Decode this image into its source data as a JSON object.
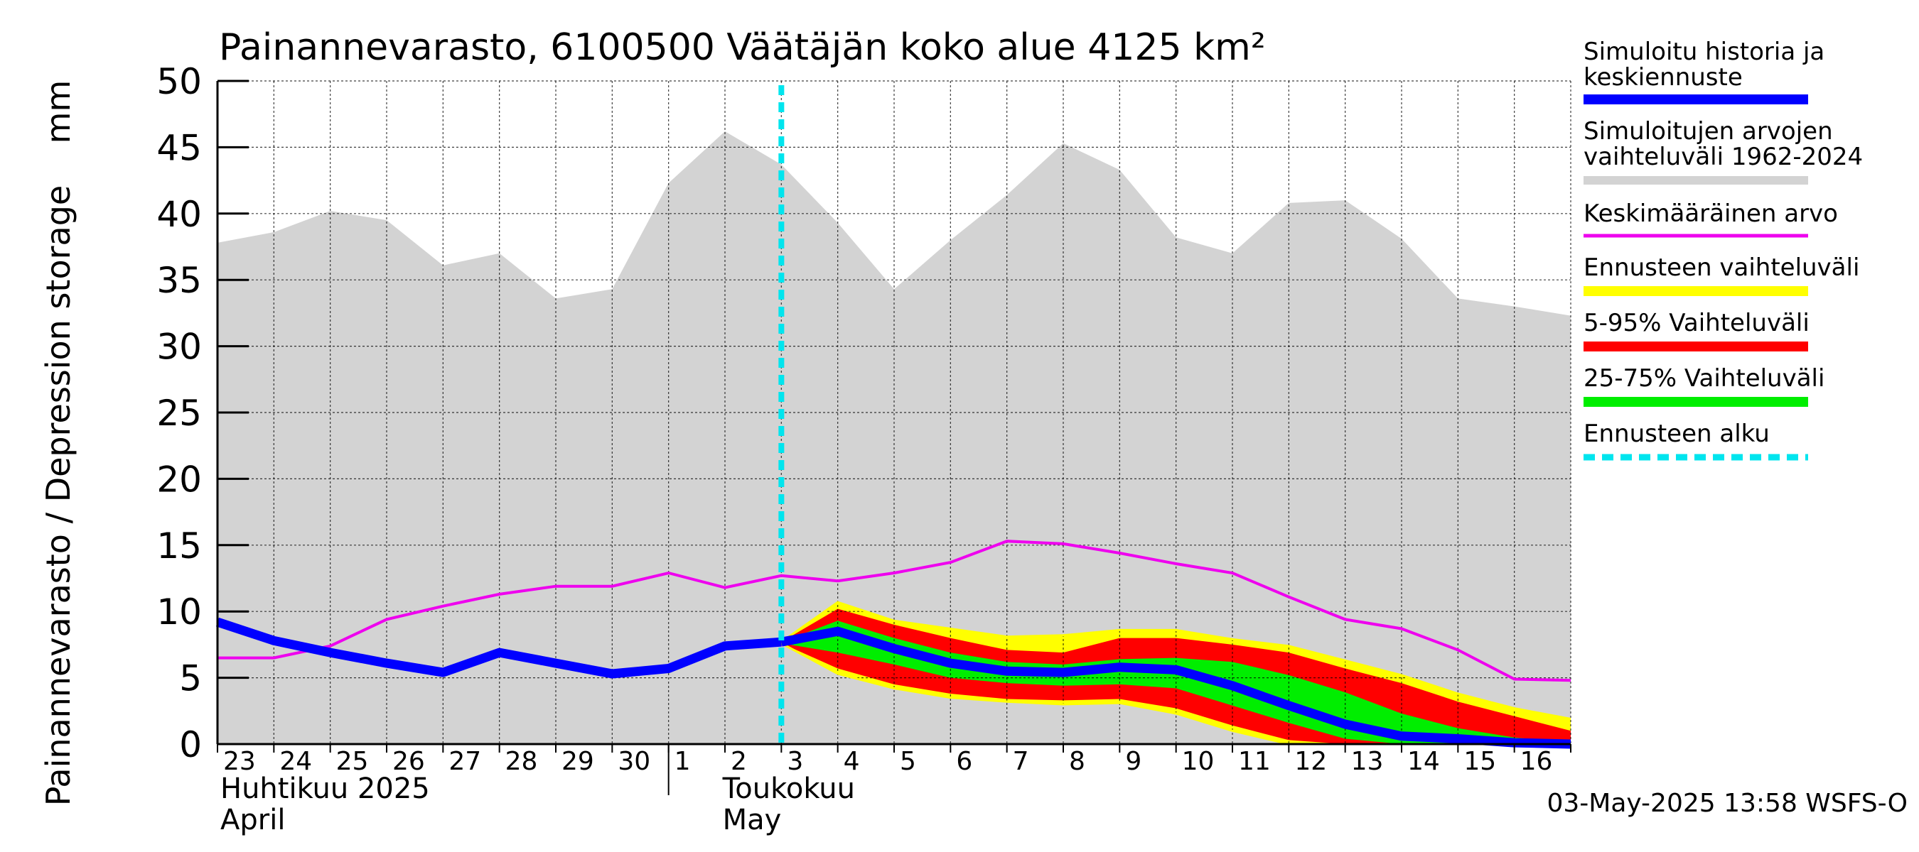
{
  "chart_data": {
    "type": "area",
    "title": "Painannevarasto, 6100500 Väätäjän koko alue 4125 km²",
    "ylabel": "Painannevarasto / Depression storage    mm",
    "ylim": [
      0,
      50
    ],
    "yticks": [
      0,
      5,
      10,
      15,
      20,
      25,
      30,
      35,
      40,
      45,
      50
    ],
    "x_start_date": "2025-04-23",
    "x_end_date": "2025-05-17",
    "day_labels": [
      "23",
      "24",
      "25",
      "26",
      "27",
      "28",
      "29",
      "30",
      "1",
      "2",
      "3",
      "4",
      "5",
      "6",
      "7",
      "8",
      "9",
      "10",
      "11",
      "12",
      "13",
      "14",
      "15",
      "16"
    ],
    "month_labels": [
      {
        "fi": "Huhtikuu  2025",
        "en": "April",
        "date": "2025-04-23"
      },
      {
        "fi": "Toukokuu",
        "en": "May",
        "date": "2025-05-01"
      }
    ],
    "forecast_start": "2025-05-03",
    "grid": true,
    "legend_position": "right",
    "legend": [
      {
        "label": "Simuloitu historia ja keskiennuste",
        "color": "#0000ff"
      },
      {
        "label": "Simuloitujen arvojen vaihteluväli 1962-2024",
        "color": "#d3d3d3"
      },
      {
        "label": "Keskimääräinen arvo",
        "color": "#ee00ee"
      },
      {
        "label": "Ennusteen vaihteluväli",
        "color": "#ffff00"
      },
      {
        "label": "5-95% Vaihteluväli",
        "color": "#ff0000"
      },
      {
        "label": "25-75% Vaihteluväli",
        "color": "#00ee00"
      },
      {
        "label": "Ennusteen alku",
        "color": "#00e5ee"
      }
    ],
    "hist_range_max": {
      "x": [
        "2025-04-23",
        "2025-04-24",
        "2025-04-25",
        "2025-04-26",
        "2025-04-27",
        "2025-04-28",
        "2025-04-29",
        "2025-04-30",
        "2025-05-01",
        "2025-05-02",
        "2025-05-03",
        "2025-05-04",
        "2025-05-05",
        "2025-05-06",
        "2025-05-07",
        "2025-05-08",
        "2025-05-09",
        "2025-05-10",
        "2025-05-11",
        "2025-05-12",
        "2025-05-13",
        "2025-05-14",
        "2025-05-15",
        "2025-05-16",
        "2025-05-17"
      ],
      "y": [
        37.8,
        38.6,
        40.2,
        39.5,
        36.1,
        37.0,
        33.6,
        34.3,
        42.3,
        46.2,
        43.7,
        39.3,
        34.3,
        38.0,
        41.4,
        45.3,
        43.3,
        38.2,
        37.0,
        40.8,
        41.0,
        38.1,
        33.6,
        33.0,
        32.3
      ]
    },
    "mean_value": {
      "x": [
        "2025-04-23",
        "2025-04-24",
        "2025-04-25",
        "2025-04-26",
        "2025-04-27",
        "2025-04-28",
        "2025-04-29",
        "2025-04-30",
        "2025-05-01",
        "2025-05-02",
        "2025-05-03",
        "2025-05-04",
        "2025-05-05",
        "2025-05-06",
        "2025-05-07",
        "2025-05-08",
        "2025-05-09",
        "2025-05-10",
        "2025-05-11",
        "2025-05-12",
        "2025-05-13",
        "2025-05-14",
        "2025-05-15",
        "2025-05-16",
        "2025-05-17"
      ],
      "y": [
        6.5,
        6.5,
        7.4,
        9.4,
        10.4,
        11.3,
        11.9,
        11.9,
        12.9,
        11.8,
        12.7,
        12.3,
        12.9,
        13.7,
        15.3,
        15.1,
        14.4,
        13.6,
        12.9,
        11.1,
        9.4,
        8.7,
        7.1,
        4.9,
        4.8
      ]
    },
    "simulated_history": {
      "x": [
        "2025-04-23",
        "2025-04-24",
        "2025-04-25",
        "2025-04-26",
        "2025-04-27",
        "2025-04-28",
        "2025-04-29",
        "2025-04-30",
        "2025-05-01",
        "2025-05-02",
        "2025-05-03"
      ],
      "y": [
        9.2,
        7.8,
        6.9,
        6.1,
        5.4,
        6.9,
        6.1,
        5.3,
        5.7,
        7.4,
        7.7
      ]
    },
    "forecast": {
      "x": [
        "2025-05-03",
        "2025-05-04",
        "2025-05-05",
        "2025-05-06",
        "2025-05-07",
        "2025-05-08",
        "2025-05-09",
        "2025-05-10",
        "2025-05-11",
        "2025-05-12",
        "2025-05-13",
        "2025-05-14",
        "2025-05-15",
        "2025-05-16",
        "2025-05-17"
      ],
      "median": [
        7.7,
        8.5,
        7.2,
        6.1,
        5.5,
        5.4,
        5.8,
        5.6,
        4.4,
        2.9,
        1.5,
        0.6,
        0.4,
        0.1,
        0.0
      ],
      "range_min": [
        7.6,
        5.3,
        4.2,
        3.5,
        3.2,
        3.0,
        3.1,
        2.3,
        1.0,
        0.0,
        0.0,
        0.0,
        0.0,
        0.0,
        0.0
      ],
      "range_max": [
        7.7,
        10.7,
        9.3,
        8.7,
        8.1,
        8.2,
        8.6,
        8.6,
        7.9,
        7.4,
        6.3,
        5.2,
        3.8,
        2.7,
        1.9
      ],
      "p05": [
        7.6,
        5.7,
        4.5,
        3.8,
        3.4,
        3.3,
        3.4,
        2.7,
        1.4,
        0.3,
        0.0,
        0.0,
        0.0,
        0.0,
        0.0
      ],
      "p95": [
        7.7,
        10.2,
        9.0,
        8.0,
        7.1,
        6.9,
        8.0,
        8.0,
        7.5,
        6.9,
        5.7,
        4.6,
        3.2,
        2.1,
        1.0
      ],
      "p25": [
        7.6,
        6.9,
        6.0,
        5.0,
        4.6,
        4.4,
        4.5,
        4.2,
        2.9,
        1.6,
        0.4,
        0.0,
        0.0,
        0.0,
        0.0
      ],
      "p75": [
        7.7,
        9.3,
        8.0,
        6.9,
        6.2,
        6.0,
        6.4,
        6.5,
        6.2,
        5.2,
        3.9,
        2.3,
        1.2,
        0.5,
        0.1
      ]
    }
  },
  "footer_text": "03-May-2025 13:58 WSFS-O"
}
